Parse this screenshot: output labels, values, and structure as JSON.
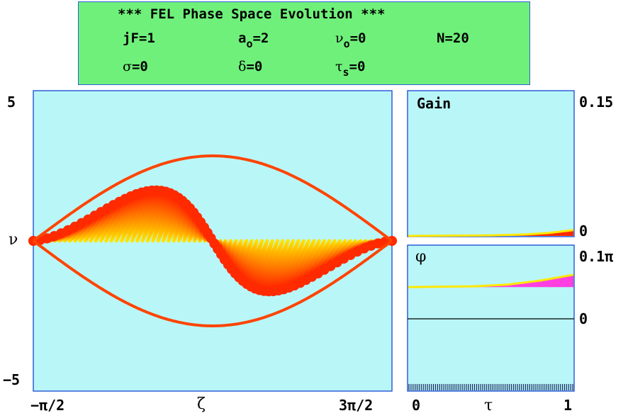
{
  "header": {
    "title": "*** FEL Phase Space Evolution ***",
    "params": [
      {
        "label": "jF",
        "sub": "",
        "value": "=1"
      },
      {
        "label": "a",
        "sub": "o",
        "value": "=2"
      },
      {
        "label": "ν",
        "sub": "o",
        "value": "=0"
      },
      {
        "label": "N",
        "sub": "",
        "value": "=20"
      },
      {
        "label": "σ",
        "sub": "",
        "value": "=0"
      },
      {
        "label": "δ",
        "sub": "",
        "value": "=0"
      },
      {
        "label": "τ",
        "sub": "s",
        "value": "=0"
      }
    ]
  },
  "colors": {
    "panel_bg": "#b9f6f8",
    "frame": "#2f5fd8",
    "header_bg": "#6ff07a",
    "particle_hot": "#ff2a00",
    "particle_cool": "#ffe800",
    "phase_fill": "#ff3fe0",
    "separatrix": "#ff4400"
  },
  "chart_data": [
    {
      "type": "scatter",
      "name": "phase-space",
      "xlabel": "ζ",
      "ylabel": "ν",
      "xlim": [
        -1.5708,
        4.7124
      ],
      "ylim": [
        -5,
        5
      ],
      "x_tick_labels": [
        "−π/2",
        "3π/2"
      ],
      "y_tick_labels": [
        "5",
        "−5"
      ],
      "separatrix_peak": 2.83,
      "particle_count": 20,
      "max_amplitude": 2.0
    },
    {
      "type": "area",
      "name": "gain",
      "title": "Gain",
      "xlim": [
        0,
        1
      ],
      "ylim": [
        0,
        0.15
      ],
      "y_tick_labels": [
        "0.15",
        "0"
      ],
      "points": [
        [
          0,
          0
        ],
        [
          0.5,
          0.0005
        ],
        [
          0.7,
          0.0015
        ],
        [
          0.85,
          0.003
        ],
        [
          1.0,
          0.006
        ]
      ]
    },
    {
      "type": "area",
      "name": "phase",
      "title": "φ",
      "xlabel": "τ",
      "xlim": [
        0,
        1
      ],
      "ylim": [
        -0.25,
        0.1
      ],
      "y_tick_labels": [
        "0.1π",
        "0"
      ],
      "x_tick_labels": [
        "0",
        "1"
      ],
      "points": [
        [
          0,
          0
        ],
        [
          0.4,
          0.002
        ],
        [
          0.6,
          0.006
        ],
        [
          0.8,
          0.016
        ],
        [
          1.0,
          0.03
        ]
      ]
    }
  ]
}
